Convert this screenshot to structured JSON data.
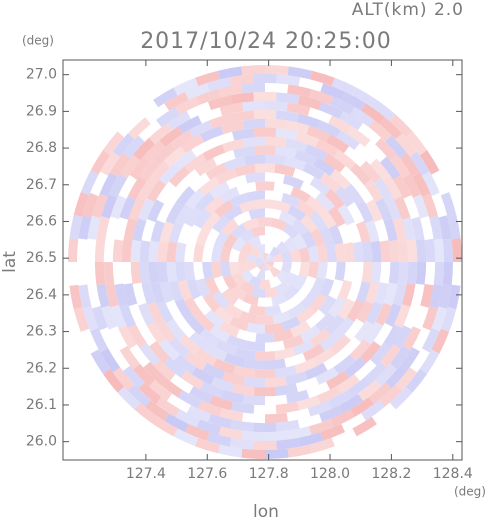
{
  "chart_data": {
    "type": "ppi",
    "title": "2017/10/24 20:25:00",
    "annotation": "ALT(km) 2.0",
    "x_label": "lon",
    "x_unit": "(deg)",
    "y_label": "lat",
    "y_unit": "(deg)",
    "xlim": [
      127.13,
      128.43
    ],
    "ylim": [
      25.95,
      27.04
    ],
    "xticks": [
      127.4,
      127.6,
      127.8,
      {
        "value": 128.0,
        "label": "128.0"
      },
      128.2,
      128.4
    ],
    "yticks": [
      {
        "value": 26.0,
        "label": "26.0"
      },
      26.1,
      26.2,
      26.3,
      26.4,
      26.5,
      26.6,
      26.7,
      26.8,
      26.9,
      {
        "value": 27.0,
        "label": "27.0"
      }
    ],
    "colors": [
      "#f7b9b9",
      "#c7c7f5",
      "#ffffff"
    ]
  }
}
